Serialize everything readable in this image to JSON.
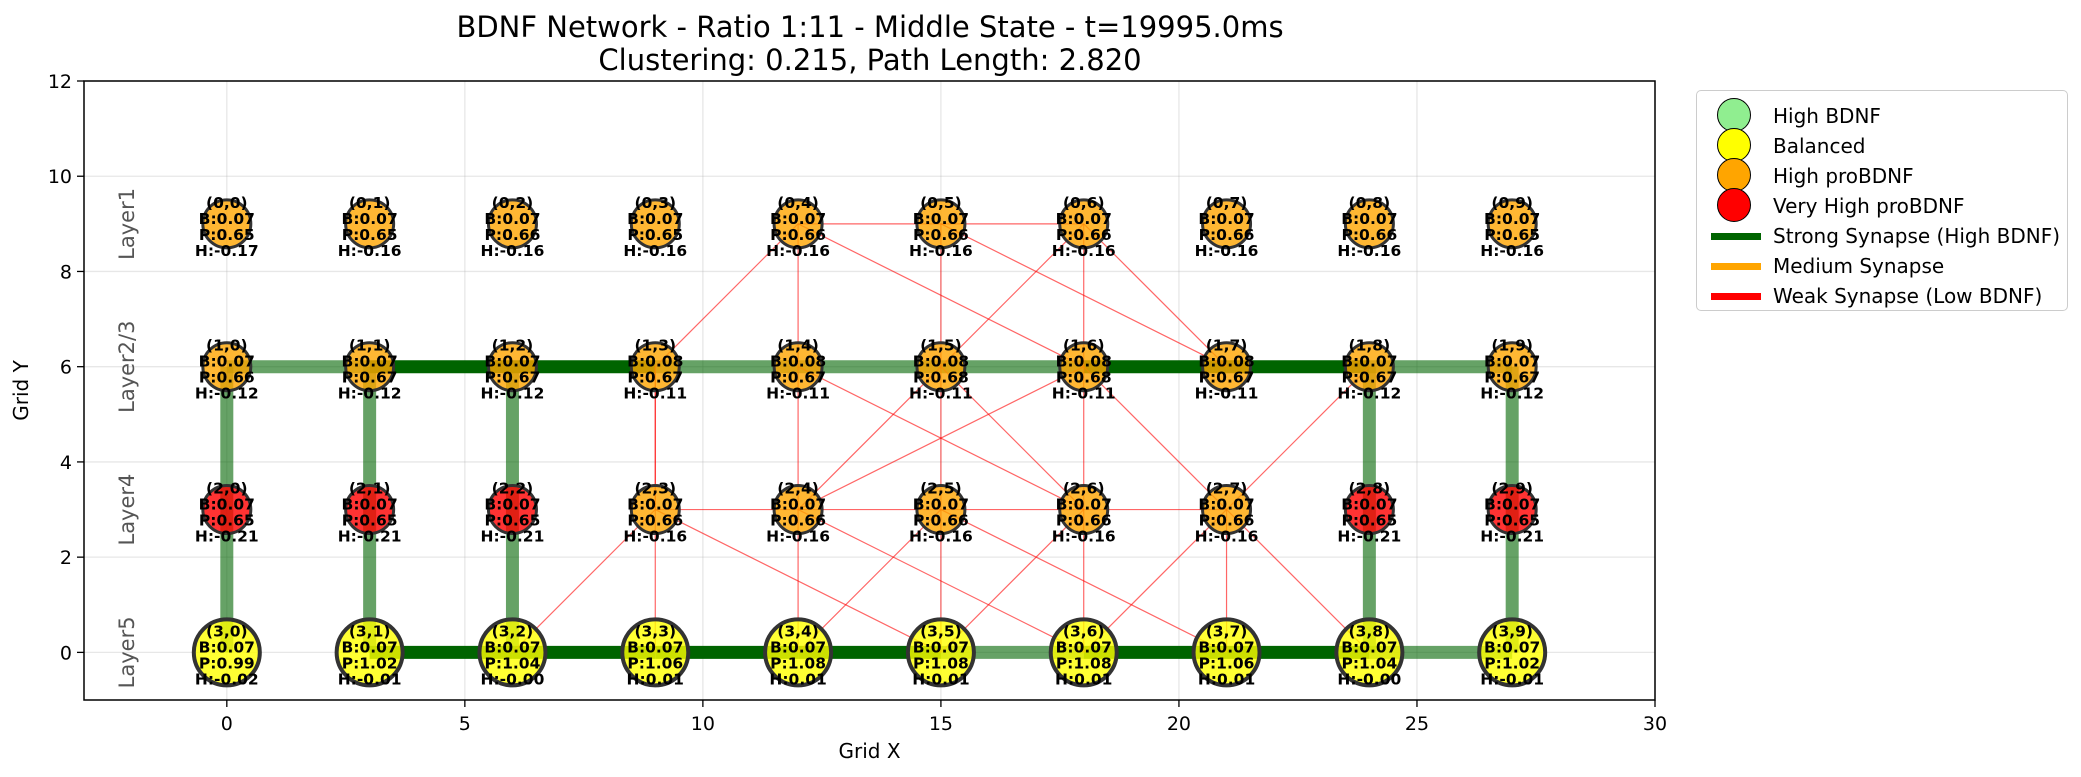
{
  "chart_data": {
    "type": "scatter",
    "title": "BDNF Network - Ratio 1:11 - Middle State - t=19995.0ms",
    "subtitle": "Clustering: 0.215, Path Length: 2.820",
    "xlabel": "Grid X",
    "ylabel": "Grid Y",
    "xlim": [
      -3,
      30
    ],
    "ylim": [
      -1,
      12
    ],
    "xticks": [
      0,
      5,
      10,
      15,
      20,
      25,
      30
    ],
    "yticks": [
      0,
      2,
      4,
      6,
      8,
      10,
      12
    ],
    "grid": true,
    "legend_position": "outside-top-right",
    "layers": [
      {
        "label": "Layer1",
        "y": 9
      },
      {
        "label": "Layer2/3",
        "y": 6
      },
      {
        "label": "Layer4",
        "y": 3
      },
      {
        "label": "Layer5",
        "y": 0
      }
    ],
    "colors": {
      "high_bdnf": "#90ee90",
      "balanced": "#ffff00",
      "high_probdnf": "#ffa500",
      "very_high_probdnf": "#ff0000",
      "strong": "#006400",
      "medium": "#ffa500",
      "weak": "#ff0000"
    },
    "nodes": [
      {
        "id": "(0,0)",
        "x": 0,
        "y": 9,
        "B": "B:0.07",
        "P": "P:0.65",
        "H": "H:-0.17",
        "category": "high_probdnf"
      },
      {
        "id": "(0,1)",
        "x": 3,
        "y": 9,
        "B": "B:0.07",
        "P": "P:0.65",
        "H": "H:-0.16",
        "category": "high_probdnf"
      },
      {
        "id": "(0,2)",
        "x": 6,
        "y": 9,
        "B": "B:0.07",
        "P": "P:0.66",
        "H": "H:-0.16",
        "category": "high_probdnf"
      },
      {
        "id": "(0,3)",
        "x": 9,
        "y": 9,
        "B": "B:0.07",
        "P": "P:0.65",
        "H": "H:-0.16",
        "category": "high_probdnf"
      },
      {
        "id": "(0,4)",
        "x": 12,
        "y": 9,
        "B": "B:0.07",
        "P": "P:0.66",
        "H": "H:-0.16",
        "category": "high_probdnf"
      },
      {
        "id": "(0,5)",
        "x": 15,
        "y": 9,
        "B": "B:0.07",
        "P": "P:0.66",
        "H": "H:-0.16",
        "category": "high_probdnf"
      },
      {
        "id": "(0,6)",
        "x": 18,
        "y": 9,
        "B": "B:0.07",
        "P": "P:0.66",
        "H": "H:-0.16",
        "category": "high_probdnf"
      },
      {
        "id": "(0,7)",
        "x": 21,
        "y": 9,
        "B": "B:0.07",
        "P": "P:0.66",
        "H": "H:-0.16",
        "category": "high_probdnf"
      },
      {
        "id": "(0,8)",
        "x": 24,
        "y": 9,
        "B": "B:0.07",
        "P": "P:0.66",
        "H": "H:-0.16",
        "category": "high_probdnf"
      },
      {
        "id": "(0,9)",
        "x": 27,
        "y": 9,
        "B": "B:0.07",
        "P": "P:0.65",
        "H": "H:-0.16",
        "category": "high_probdnf"
      },
      {
        "id": "(1,0)",
        "x": 0,
        "y": 6,
        "B": "B:0.07",
        "P": "P:0.66",
        "H": "H:-0.12",
        "category": "high_probdnf"
      },
      {
        "id": "(1,1)",
        "x": 3,
        "y": 6,
        "B": "B:0.07",
        "P": "P:0.67",
        "H": "H:-0.12",
        "category": "high_probdnf"
      },
      {
        "id": "(1,2)",
        "x": 6,
        "y": 6,
        "B": "B:0.07",
        "P": "P:0.67",
        "H": "H:-0.12",
        "category": "high_probdnf"
      },
      {
        "id": "(1,3)",
        "x": 9,
        "y": 6,
        "B": "B:0.08",
        "P": "P:0.67",
        "H": "H:-0.11",
        "category": "high_probdnf"
      },
      {
        "id": "(1,4)",
        "x": 12,
        "y": 6,
        "B": "B:0.08",
        "P": "P:0.67",
        "H": "H:-0.11",
        "category": "high_probdnf"
      },
      {
        "id": "(1,5)",
        "x": 15,
        "y": 6,
        "B": "B:0.08",
        "P": "P:0.68",
        "H": "H:-0.11",
        "category": "high_probdnf"
      },
      {
        "id": "(1,6)",
        "x": 18,
        "y": 6,
        "B": "B:0.08",
        "P": "P:0.68",
        "H": "H:-0.11",
        "category": "high_probdnf"
      },
      {
        "id": "(1,7)",
        "x": 21,
        "y": 6,
        "B": "B:0.08",
        "P": "P:0.67",
        "H": "H:-0.11",
        "category": "high_probdnf"
      },
      {
        "id": "(1,8)",
        "x": 24,
        "y": 6,
        "B": "B:0.07",
        "P": "P:0.67",
        "H": "H:-0.12",
        "category": "high_probdnf"
      },
      {
        "id": "(1,9)",
        "x": 27,
        "y": 6,
        "B": "B:0.07",
        "P": "P:0.67",
        "H": "H:-0.12",
        "category": "high_probdnf"
      },
      {
        "id": "(2,0)",
        "x": 0,
        "y": 3,
        "B": "B:0.07",
        "P": "P:0.65",
        "H": "H:-0.21",
        "category": "very_high_probdnf"
      },
      {
        "id": "(2,1)",
        "x": 3,
        "y": 3,
        "B": "B:0.07",
        "P": "P:0.65",
        "H": "H:-0.21",
        "category": "very_high_probdnf"
      },
      {
        "id": "(2,2)",
        "x": 6,
        "y": 3,
        "B": "B:0.07",
        "P": "P:0.65",
        "H": "H:-0.21",
        "category": "very_high_probdnf"
      },
      {
        "id": "(2,3)",
        "x": 9,
        "y": 3,
        "B": "B:0.07",
        "P": "P:0.66",
        "H": "H:-0.16",
        "category": "high_probdnf"
      },
      {
        "id": "(2,4)",
        "x": 12,
        "y": 3,
        "B": "B:0.07",
        "P": "P:0.66",
        "H": "H:-0.16",
        "category": "high_probdnf"
      },
      {
        "id": "(2,5)",
        "x": 15,
        "y": 3,
        "B": "B:0.07",
        "P": "P:0.66",
        "H": "H:-0.16",
        "category": "high_probdnf"
      },
      {
        "id": "(2,6)",
        "x": 18,
        "y": 3,
        "B": "B:0.07",
        "P": "P:0.66",
        "H": "H:-0.16",
        "category": "high_probdnf"
      },
      {
        "id": "(2,7)",
        "x": 21,
        "y": 3,
        "B": "B:0.07",
        "P": "P:0.66",
        "H": "H:-0.16",
        "category": "high_probdnf"
      },
      {
        "id": "(2,8)",
        "x": 24,
        "y": 3,
        "B": "B:0.07",
        "P": "P:0.65",
        "H": "H:-0.21",
        "category": "very_high_probdnf"
      },
      {
        "id": "(2,9)",
        "x": 27,
        "y": 3,
        "B": "B:0.07",
        "P": "P:0.65",
        "H": "H:-0.21",
        "category": "very_high_probdnf"
      },
      {
        "id": "(3,0)",
        "x": 0,
        "y": 0,
        "B": "B:0.07",
        "P": "P:0.99",
        "H": "H:-0.02",
        "category": "balanced"
      },
      {
        "id": "(3,1)",
        "x": 3,
        "y": 0,
        "B": "B:0.07",
        "P": "P:1.02",
        "H": "H:-0.01",
        "category": "balanced"
      },
      {
        "id": "(3,2)",
        "x": 6,
        "y": 0,
        "B": "B:0.07",
        "P": "P:1.04",
        "H": "H:-0.00",
        "category": "balanced"
      },
      {
        "id": "(3,3)",
        "x": 9,
        "y": 0,
        "B": "B:0.07",
        "P": "P:1.06",
        "H": "H:0.01",
        "category": "balanced"
      },
      {
        "id": "(3,4)",
        "x": 12,
        "y": 0,
        "B": "B:0.07",
        "P": "P:1.08",
        "H": "H:0.01",
        "category": "balanced"
      },
      {
        "id": "(3,5)",
        "x": 15,
        "y": 0,
        "B": "B:0.07",
        "P": "P:1.08",
        "H": "H:0.01",
        "category": "balanced"
      },
      {
        "id": "(3,6)",
        "x": 18,
        "y": 0,
        "B": "B:0.07",
        "P": "P:1.08",
        "H": "H:0.01",
        "category": "balanced"
      },
      {
        "id": "(3,7)",
        "x": 21,
        "y": 0,
        "B": "B:0.07",
        "P": "P:1.06",
        "H": "H:0.01",
        "category": "balanced"
      },
      {
        "id": "(3,8)",
        "x": 24,
        "y": 0,
        "B": "B:0.07",
        "P": "P:1.04",
        "H": "H:-0.00",
        "category": "balanced"
      },
      {
        "id": "(3,9)",
        "x": 27,
        "y": 0,
        "B": "B:0.07",
        "P": "P:1.02",
        "H": "H:-0.01",
        "category": "balanced"
      }
    ],
    "edges": [
      {
        "from": "(1,0)",
        "to": "(1,1)",
        "strength": "strong",
        "alpha": 0.6
      },
      {
        "from": "(1,1)",
        "to": "(1,2)",
        "strength": "strong",
        "alpha": 1.0
      },
      {
        "from": "(1,2)",
        "to": "(1,3)",
        "strength": "strong",
        "alpha": 1.0
      },
      {
        "from": "(1,3)",
        "to": "(1,4)",
        "strength": "strong",
        "alpha": 0.6
      },
      {
        "from": "(1,4)",
        "to": "(1,5)",
        "strength": "strong",
        "alpha": 0.6
      },
      {
        "from": "(1,5)",
        "to": "(1,6)",
        "strength": "strong",
        "alpha": 0.6
      },
      {
        "from": "(1,6)",
        "to": "(1,7)",
        "strength": "strong",
        "alpha": 1.0
      },
      {
        "from": "(1,7)",
        "to": "(1,8)",
        "strength": "strong",
        "alpha": 1.0
      },
      {
        "from": "(1,8)",
        "to": "(1,9)",
        "strength": "strong",
        "alpha": 0.6
      },
      {
        "from": "(3,1)",
        "to": "(3,2)",
        "strength": "strong",
        "alpha": 1.0
      },
      {
        "from": "(3,2)",
        "to": "(3,3)",
        "strength": "strong",
        "alpha": 1.0
      },
      {
        "from": "(3,3)",
        "to": "(3,4)",
        "strength": "strong",
        "alpha": 1.0
      },
      {
        "from": "(3,4)",
        "to": "(3,5)",
        "strength": "strong",
        "alpha": 1.0
      },
      {
        "from": "(3,5)",
        "to": "(3,6)",
        "strength": "strong",
        "alpha": 0.6
      },
      {
        "from": "(3,6)",
        "to": "(3,7)",
        "strength": "strong",
        "alpha": 1.0
      },
      {
        "from": "(3,7)",
        "to": "(3,8)",
        "strength": "strong",
        "alpha": 1.0
      },
      {
        "from": "(3,8)",
        "to": "(3,9)",
        "strength": "strong",
        "alpha": 0.6
      },
      {
        "from": "(1,0)",
        "to": "(3,0)",
        "strength": "strong",
        "alpha": 0.6
      },
      {
        "from": "(1,1)",
        "to": "(3,1)",
        "strength": "strong",
        "alpha": 0.6
      },
      {
        "from": "(1,2)",
        "to": "(3,2)",
        "strength": "strong",
        "alpha": 0.6
      },
      {
        "from": "(1,8)",
        "to": "(3,8)",
        "strength": "strong",
        "alpha": 0.6
      },
      {
        "from": "(1,9)",
        "to": "(3,9)",
        "strength": "strong",
        "alpha": 0.6
      },
      {
        "from": "(0,4)",
        "to": "(0,6)",
        "strength": "weak",
        "alpha": 0.6
      },
      {
        "from": "(0,4)",
        "to": "(1,3)",
        "strength": "weak",
        "alpha": 0.6
      },
      {
        "from": "(0,4)",
        "to": "(1,4)",
        "strength": "weak",
        "alpha": 0.6
      },
      {
        "from": "(0,4)",
        "to": "(1,6)",
        "strength": "weak",
        "alpha": 0.6
      },
      {
        "from": "(0,5)",
        "to": "(1,5)",
        "strength": "weak",
        "alpha": 0.6
      },
      {
        "from": "(0,5)",
        "to": "(1,7)",
        "strength": "weak",
        "alpha": 0.6
      },
      {
        "from": "(0,6)",
        "to": "(1,5)",
        "strength": "weak",
        "alpha": 0.6
      },
      {
        "from": "(0,6)",
        "to": "(1,6)",
        "strength": "weak",
        "alpha": 0.6
      },
      {
        "from": "(0,6)",
        "to": "(1,7)",
        "strength": "weak",
        "alpha": 0.6
      },
      {
        "from": "(1,3)",
        "to": "(2,3)",
        "strength": "weak",
        "alpha": 0.6
      },
      {
        "from": "(1,3)",
        "to": "(3,3)",
        "strength": "weak",
        "alpha": 0.6
      },
      {
        "from": "(1,4)",
        "to": "(2,4)",
        "strength": "weak",
        "alpha": 0.6
      },
      {
        "from": "(1,4)",
        "to": "(2,6)",
        "strength": "weak",
        "alpha": 0.6
      },
      {
        "from": "(1,5)",
        "to": "(2,4)",
        "strength": "weak",
        "alpha": 0.6
      },
      {
        "from": "(1,5)",
        "to": "(2,5)",
        "strength": "weak",
        "alpha": 0.6
      },
      {
        "from": "(1,5)",
        "to": "(2,6)",
        "strength": "weak",
        "alpha": 0.6
      },
      {
        "from": "(1,6)",
        "to": "(2,4)",
        "strength": "weak",
        "alpha": 0.6
      },
      {
        "from": "(1,6)",
        "to": "(2,6)",
        "strength": "weak",
        "alpha": 0.6
      },
      {
        "from": "(1,6)",
        "to": "(2,7)",
        "strength": "weak",
        "alpha": 0.6
      },
      {
        "from": "(1,8)",
        "to": "(2,7)",
        "strength": "weak",
        "alpha": 0.6
      },
      {
        "from": "(2,3)",
        "to": "(2,7)",
        "strength": "weak",
        "alpha": 0.6
      },
      {
        "from": "(2,3)",
        "to": "(3,2)",
        "strength": "weak",
        "alpha": 0.6
      },
      {
        "from": "(2,3)",
        "to": "(3,5)",
        "strength": "weak",
        "alpha": 0.6
      },
      {
        "from": "(2,4)",
        "to": "(3,4)",
        "strength": "weak",
        "alpha": 0.6
      },
      {
        "from": "(2,4)",
        "to": "(3,6)",
        "strength": "weak",
        "alpha": 0.6
      },
      {
        "from": "(2,5)",
        "to": "(3,4)",
        "strength": "weak",
        "alpha": 0.6
      },
      {
        "from": "(2,5)",
        "to": "(3,5)",
        "strength": "weak",
        "alpha": 0.6
      },
      {
        "from": "(2,5)",
        "to": "(3,7)",
        "strength": "weak",
        "alpha": 0.6
      },
      {
        "from": "(2,6)",
        "to": "(3,5)",
        "strength": "weak",
        "alpha": 0.6
      },
      {
        "from": "(2,6)",
        "to": "(3,6)",
        "strength": "weak",
        "alpha": 0.6
      },
      {
        "from": "(2,7)",
        "to": "(3,6)",
        "strength": "weak",
        "alpha": 0.6
      },
      {
        "from": "(2,7)",
        "to": "(3,7)",
        "strength": "weak",
        "alpha": 0.6
      },
      {
        "from": "(2,7)",
        "to": "(3,8)",
        "strength": "weak",
        "alpha": 0.6
      }
    ],
    "legend": [
      {
        "label": "High BDNF",
        "kind": "circle",
        "color": "#90ee90"
      },
      {
        "label": "Balanced",
        "kind": "circle",
        "color": "#ffff00"
      },
      {
        "label": "High proBDNF",
        "kind": "circle",
        "color": "#ffa500"
      },
      {
        "label": "Very High proBDNF",
        "kind": "circle",
        "color": "#ff0000"
      },
      {
        "label": "Strong Synapse (High BDNF)",
        "kind": "line",
        "color": "#006400"
      },
      {
        "label": "Medium Synapse",
        "kind": "line",
        "color": "#ffa500"
      },
      {
        "label": "Weak Synapse (Low BDNF)",
        "kind": "line",
        "color": "#ff0000"
      }
    ]
  }
}
